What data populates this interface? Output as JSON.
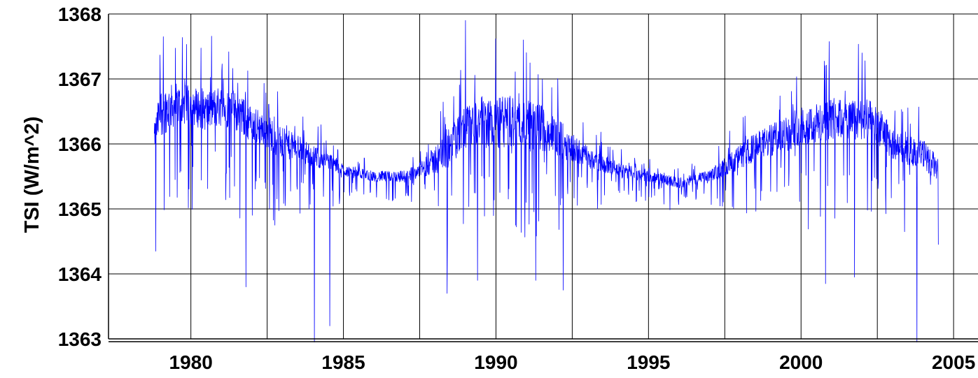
{
  "chart_data": {
    "type": "line",
    "title": "",
    "xlabel": "",
    "ylabel": "TSI  (W/m^2)",
    "xlim": [
      1977.3,
      2005.8
    ],
    "ylim": [
      1363,
      1368
    ],
    "grid": true,
    "legend": "none",
    "x_ticks": [
      1980,
      1985,
      1990,
      1995,
      2000,
      2005
    ],
    "x_tick_labels": [
      "1980",
      "1985",
      "1990",
      "1995",
      "2000",
      "2005"
    ],
    "y_ticks": [
      1363,
      1364,
      1365,
      1366,
      1367,
      1368
    ],
    "y_tick_labels": [
      "1363",
      "1364",
      "1365",
      "1366",
      "1367",
      "1368"
    ],
    "colors": {
      "series": "#0000ff",
      "grid": "#000000",
      "background": "#ffffff"
    },
    "series": [
      {
        "x": [
          1978.8,
          1979.0,
          1979.5,
          1980.0,
          1980.5,
          1981.0,
          1981.5,
          1982.0,
          1982.5,
          1983.0,
          1983.5,
          1984.0,
          1984.5,
          1985.0,
          1985.5,
          1986.0,
          1986.5,
          1987.0,
          1987.5,
          1988.0,
          1988.5,
          1989.0,
          1989.5,
          1990.0,
          1990.5,
          1991.0,
          1991.5,
          1992.0,
          1992.5,
          1993.0,
          1993.5,
          1994.0,
          1994.5,
          1995.0,
          1995.5,
          1996.0,
          1996.5,
          1997.0,
          1997.5,
          1998.0,
          1998.5,
          1999.0,
          1999.5,
          2000.0,
          2000.5,
          2001.0,
          2001.5,
          2002.0,
          2002.5,
          2003.0,
          2003.5,
          2004.0,
          2004.5
        ],
        "values": [
          1366.1,
          1366.5,
          1366.6,
          1366.6,
          1366.5,
          1366.6,
          1366.5,
          1366.3,
          1366.2,
          1366.0,
          1365.95,
          1365.8,
          1365.75,
          1365.6,
          1365.55,
          1365.5,
          1365.5,
          1365.5,
          1365.6,
          1365.75,
          1365.95,
          1366.25,
          1366.35,
          1366.3,
          1366.35,
          1366.3,
          1366.25,
          1366.1,
          1365.95,
          1365.8,
          1365.7,
          1365.6,
          1365.55,
          1365.5,
          1365.45,
          1365.4,
          1365.45,
          1365.5,
          1365.65,
          1365.8,
          1365.95,
          1366.05,
          1366.15,
          1366.3,
          1366.3,
          1366.4,
          1366.35,
          1366.4,
          1366.3,
          1366.0,
          1365.9,
          1365.85,
          1365.6
        ],
        "spread": [
          0.35,
          0.7,
          0.6,
          0.55,
          0.55,
          0.6,
          0.55,
          0.5,
          0.5,
          0.45,
          0.35,
          0.3,
          0.25,
          0.18,
          0.15,
          0.15,
          0.15,
          0.17,
          0.2,
          0.4,
          0.55,
          0.65,
          0.7,
          0.75,
          0.75,
          0.7,
          0.65,
          0.55,
          0.4,
          0.3,
          0.25,
          0.2,
          0.18,
          0.15,
          0.15,
          0.15,
          0.15,
          0.18,
          0.25,
          0.35,
          0.4,
          0.45,
          0.5,
          0.55,
          0.6,
          0.6,
          0.55,
          0.6,
          0.55,
          0.45,
          0.4,
          0.4,
          0.35
        ],
        "extremes": [
          {
            "x": 1978.85,
            "y": 1364.35
          },
          {
            "x": 1979.1,
            "y": 1367.65
          },
          {
            "x": 1981.8,
            "y": 1363.8
          },
          {
            "x": 1984.05,
            "y": 1362.95
          },
          {
            "x": 1984.55,
            "y": 1363.2
          },
          {
            "x": 1988.4,
            "y": 1363.7
          },
          {
            "x": 1989.0,
            "y": 1367.9
          },
          {
            "x": 1989.4,
            "y": 1363.9
          },
          {
            "x": 1990.9,
            "y": 1367.6
          },
          {
            "x": 1991.3,
            "y": 1363.9
          },
          {
            "x": 1992.2,
            "y": 1363.75
          },
          {
            "x": 2000.8,
            "y": 1363.85
          },
          {
            "x": 2001.75,
            "y": 1363.95
          },
          {
            "x": 2002.0,
            "y": 1367.4
          },
          {
            "x": 2003.8,
            "y": 1362.95
          },
          {
            "x": 2004.5,
            "y": 1364.45
          }
        ]
      }
    ]
  }
}
